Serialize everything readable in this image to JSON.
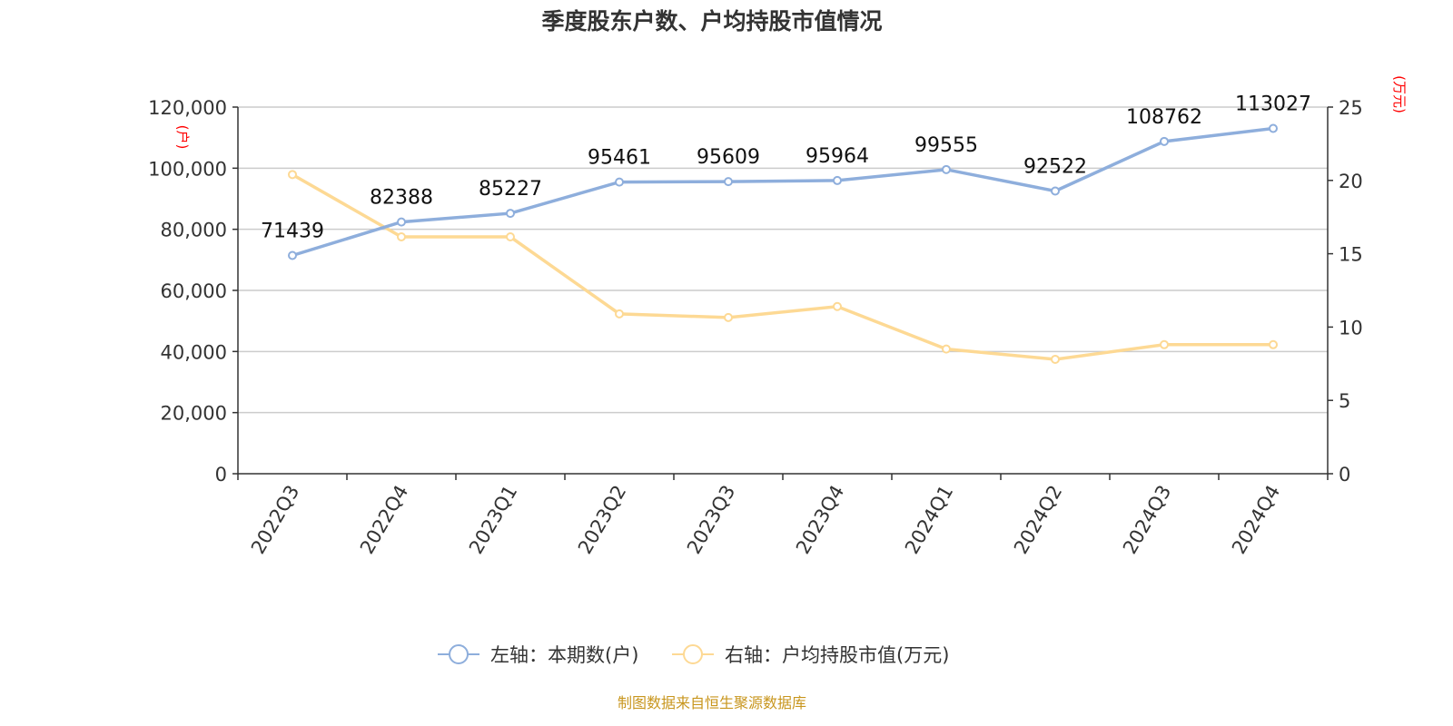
{
  "chart_data": {
    "type": "line",
    "title": "季度股东户数、户均持股市值情况",
    "categories": [
      "2022Q3",
      "2022Q4",
      "2023Q1",
      "2023Q2",
      "2023Q3",
      "2023Q4",
      "2024Q1",
      "2024Q2",
      "2024Q3",
      "2024Q4"
    ],
    "left_axis": {
      "unit": "(户)",
      "ylim": [
        0,
        120000
      ],
      "ticks": [
        0,
        20000,
        40000,
        60000,
        80000,
        100000,
        120000
      ],
      "tick_labels": [
        "0",
        "20,000",
        "40,000",
        "60,000",
        "80,000",
        "100,000",
        "120,000"
      ]
    },
    "right_axis": {
      "unit": "(万元)",
      "ylim": [
        0,
        25
      ],
      "ticks": [
        0,
        5,
        10,
        15,
        20,
        25
      ],
      "tick_labels": [
        "0",
        "5",
        "10",
        "15",
        "20",
        "25"
      ],
      "color": "#ff0000"
    },
    "series": [
      {
        "name": "左轴：本期数(户)",
        "axis": "left",
        "color": "#8eaedc",
        "values": [
          71439,
          82388,
          85227,
          95461,
          95609,
          95964,
          99555,
          92522,
          108762,
          113027
        ],
        "labels": [
          "71439",
          "82388",
          "85227",
          "95461",
          "95609",
          "95964",
          "99555",
          "92522",
          "108762",
          "113027"
        ]
      },
      {
        "name": "右轴：户均持股市值(万元)",
        "axis": "right",
        "color": "#fdd994",
        "values": [
          20.4,
          16.15,
          16.15,
          10.9,
          10.65,
          11.4,
          8.5,
          7.8,
          8.8,
          8.8
        ]
      }
    ],
    "grid": true,
    "legend": "bottom"
  },
  "source": "制图数据来自恒生聚源数据库"
}
